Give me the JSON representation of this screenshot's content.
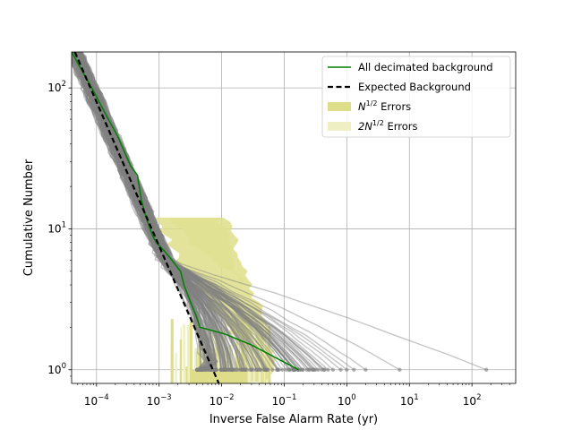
{
  "chart_data": {
    "type": "line",
    "title": "",
    "xlabel": "Inverse False Alarm Rate (yr)",
    "ylabel": "Cumulative Number",
    "xscale": "log",
    "yscale": "log",
    "xlim": [
      4e-05,
      500
    ],
    "ylim": [
      0.8,
      180
    ],
    "grid": true,
    "legend_position": "upper right",
    "x_ticks": [
      {
        "value": 0.0001,
        "base": "10",
        "exp": "−4"
      },
      {
        "value": 0.001,
        "base": "10",
        "exp": "−3"
      },
      {
        "value": 0.01,
        "base": "10",
        "exp": "−2"
      },
      {
        "value": 0.1,
        "base": "10",
        "exp": "−1"
      },
      {
        "value": 1,
        "base": "10",
        "exp": "0"
      },
      {
        "value": 10,
        "base": "10",
        "exp": "1"
      },
      {
        "value": 100,
        "base": "10",
        "exp": "2"
      }
    ],
    "y_ticks": [
      {
        "value": 1,
        "base": "10",
        "exp": "0"
      },
      {
        "value": 10,
        "base": "10",
        "exp": "1"
      },
      {
        "value": 100,
        "base": "10",
        "exp": "2"
      }
    ],
    "legend": [
      {
        "label": "All decimated background",
        "sup": "",
        "suffix": "",
        "style": "solid-line",
        "color": "#008000"
      },
      {
        "label": "Expected Background",
        "sup": "",
        "suffix": "",
        "style": "dashed-line",
        "color": "#000000"
      },
      {
        "label": "N",
        "sup": "1/2",
        "suffix": " Errors",
        "style": "patch",
        "color": "#dede8a"
      },
      {
        "label": "2N",
        "sup": "1/2",
        "suffix": " Errors",
        "style": "patch",
        "color": "#efefc4"
      }
    ],
    "series": [
      {
        "name": "All decimated background",
        "color": "#008000",
        "x": [
          4e-05,
          6e-05,
          9e-05,
          0.00014,
          0.00022,
          0.00035,
          0.00045,
          0.00052,
          0.00062,
          0.00078,
          0.0009,
          0.0012,
          0.0016,
          0.0022,
          0.0025,
          0.0032,
          0.0038,
          0.0045,
          0.011,
          0.03,
          0.17
        ],
        "y": [
          180,
          130,
          95,
          65,
          45,
          28,
          24,
          16,
          12,
          9,
          8,
          7,
          6,
          5,
          4,
          3,
          2.5,
          2,
          1.8,
          1.5,
          1
        ]
      },
      {
        "name": "Expected Background",
        "color": "#000000",
        "x": [
          4.5e-05,
          0.009
        ],
        "y": [
          180,
          0.8
        ]
      }
    ],
    "background_curves": {
      "color": "#808080",
      "count": 150,
      "end_points_x": [
        0.005,
        0.008,
        0.012,
        0.02,
        0.03,
        0.05,
        0.08,
        0.12,
        0.18,
        0.25,
        0.3,
        0.35,
        0.4,
        0.5,
        0.6,
        0.8,
        1,
        1.3,
        2,
        7,
        170
      ]
    },
    "error_bands": [
      {
        "name": "N^1/2 Errors",
        "color": "#dede8a"
      },
      {
        "name": "2N^1/2 Errors",
        "color": "#efefc4"
      }
    ]
  }
}
